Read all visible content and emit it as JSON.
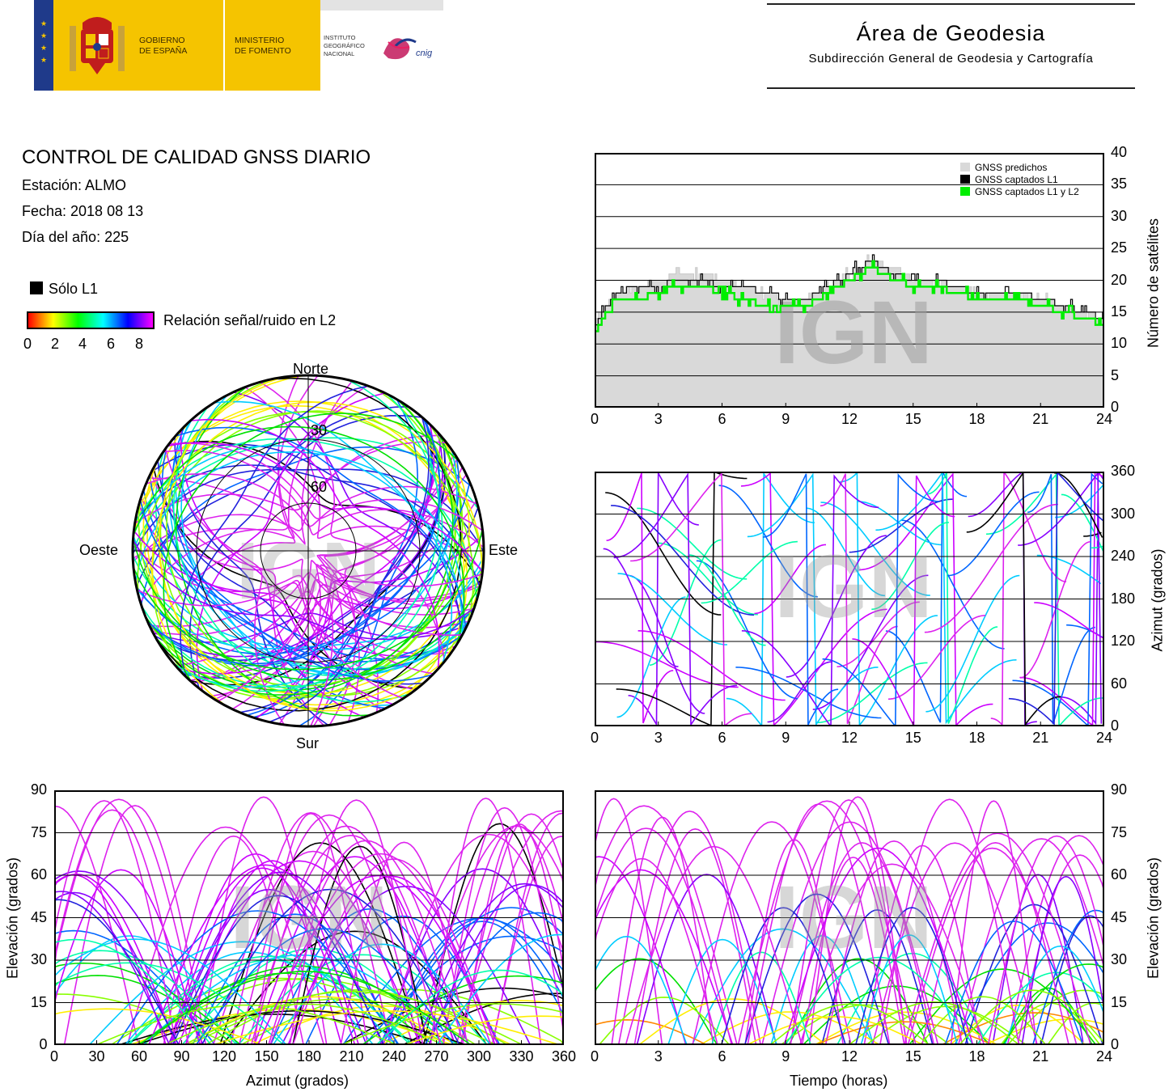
{
  "header": {
    "gov_line1": "GOBIERNO",
    "gov_line2": "DE ESPAÑA",
    "min_line1": "MINISTERIO",
    "min_line2": "DE FOMENTO",
    "inst_line1": "INSTITUTO",
    "inst_line2": "GEOGRÁFICO",
    "inst_line3": "NACIONAL",
    "cnig": "cnig",
    "area_title": "Área de Geodesia",
    "area_sub": "Subdirección General de Geodesia y Cartografía"
  },
  "info": {
    "title": "CONTROL DE CALIDAD GNSS DIARIO",
    "station": "Estación: ALMO",
    "date": "Fecha: 2018 08 13",
    "doy": "Día del año: 225"
  },
  "legend": {
    "solo_l1": "Sólo L1",
    "snr_label": "Relación señal/ruido en L2",
    "snr_ticks": [
      "0",
      "2",
      "4",
      "6",
      "8"
    ],
    "snr_colors": [
      "#ff0000",
      "#ffff00",
      "#00ff00",
      "#00ffff",
      "#0000ff",
      "#ff00ff"
    ]
  },
  "watermark": "IGN",
  "polar": {
    "north": "Norte",
    "south": "Sur",
    "west": "Oeste",
    "east": "Este",
    "ring_labels": [
      "30",
      "60"
    ]
  },
  "colors": {
    "predicted": "#d9d9d9",
    "l1": "#000000",
    "l1l2": "#00ee00"
  },
  "chart_data": [
    {
      "id": "satellites",
      "type": "area",
      "x": [
        0,
        1,
        2,
        3,
        4,
        5,
        6,
        7,
        8,
        9,
        10,
        11,
        12,
        13,
        14,
        15,
        16,
        17,
        18,
        19,
        20,
        21,
        22,
        23,
        24
      ],
      "series": [
        {
          "name": "GNSS predichos",
          "values": [
            14,
            18,
            19,
            20,
            21,
            21,
            20,
            19,
            18,
            17,
            17,
            19,
            21,
            23,
            22,
            20,
            20,
            19,
            18,
            18,
            18,
            17,
            16,
            15,
            14
          ]
        },
        {
          "name": "GNSS captados L1",
          "values": [
            13,
            18,
            19,
            19,
            20,
            20,
            19,
            19,
            18,
            17,
            17,
            19,
            21,
            23,
            21,
            20,
            20,
            19,
            18,
            18,
            18,
            17,
            16,
            15,
            14
          ]
        },
        {
          "name": "GNSS captados L1 y L2",
          "values": [
            12,
            17,
            17,
            18,
            19,
            19,
            18,
            17,
            16,
            16,
            16,
            18,
            20,
            22,
            20,
            19,
            19,
            18,
            17,
            17,
            17,
            16,
            15,
            14,
            13
          ]
        }
      ],
      "ylabel": "Número de satélites",
      "xlim": [
        0,
        24
      ],
      "ylim": [
        0,
        40
      ],
      "xticks": [
        "0",
        "3",
        "6",
        "9",
        "12",
        "15",
        "18",
        "21",
        "24"
      ],
      "yticks": [
        "0",
        "5",
        "10",
        "15",
        "20",
        "25",
        "30",
        "35",
        "40"
      ],
      "grid": true,
      "legend": "top-right"
    },
    {
      "id": "azimuth_time",
      "type": "scatter",
      "ylabel": "Azimut (grados)",
      "xlim": [
        0,
        24
      ],
      "ylim": [
        0,
        360
      ],
      "xticks": [
        "0",
        "3",
        "6",
        "9",
        "12",
        "15",
        "18",
        "21",
        "24"
      ],
      "yticks": [
        "0",
        "60",
        "120",
        "180",
        "240",
        "300",
        "360"
      ],
      "grid": true
    },
    {
      "id": "elevation_azimuth",
      "type": "scatter",
      "xlabel": "Azimut (grados)",
      "ylabel": "Elevación (grados)",
      "xlim": [
        0,
        360
      ],
      "ylim": [
        0,
        90
      ],
      "xticks": [
        "0",
        "30",
        "60",
        "90",
        "120",
        "150",
        "180",
        "210",
        "240",
        "270",
        "300",
        "330",
        "360"
      ],
      "yticks": [
        "0",
        "15",
        "30",
        "45",
        "60",
        "75",
        "90"
      ],
      "grid": true
    },
    {
      "id": "elevation_time",
      "type": "scatter",
      "xlabel": "Tiempo (horas)",
      "ylabel": "Elevación (grados)",
      "xlim": [
        0,
        24
      ],
      "ylim": [
        0,
        90
      ],
      "xticks": [
        "0",
        "3",
        "6",
        "9",
        "12",
        "15",
        "18",
        "21",
        "24"
      ],
      "yticks": [
        "0",
        "15",
        "30",
        "45",
        "60",
        "75",
        "90"
      ],
      "grid": true
    }
  ]
}
